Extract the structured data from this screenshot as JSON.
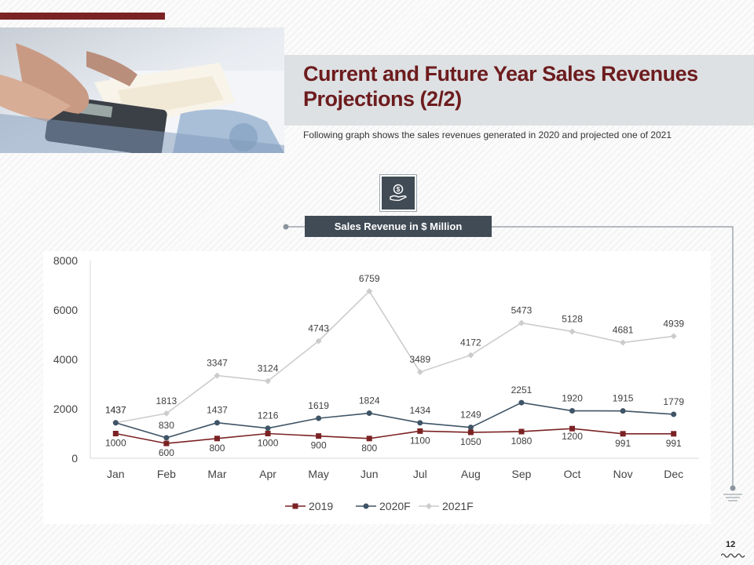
{
  "header": {
    "title": "Current and Future Year Sales Revenues Projections (2/2)",
    "subtitle": "Following graph shows the sales revenues  generated  in 2020 and projected one of 2021"
  },
  "label": {
    "text": "Sales Revenue in $ Million"
  },
  "icon": {
    "name": "money-hand-icon"
  },
  "footer": {
    "page_number": "12"
  },
  "colors": {
    "brand": "#7b2224",
    "title": "#6d1c1e",
    "banner": "#404b55",
    "series_2019": "#7b2224",
    "series_2020F": "#3f5466",
    "series_2021F": "#cccccc"
  },
  "chart_data": {
    "type": "line",
    "title": "Sales Revenue in $ Million",
    "categories": [
      "Jan",
      "Feb",
      "Mar",
      "Apr",
      "May",
      "Jun",
      "Jul",
      "Aug",
      "Sep",
      "Oct",
      "Nov",
      "Dec"
    ],
    "ylim": [
      0,
      8000
    ],
    "yticks": [
      "0",
      "2000",
      "4000",
      "6000",
      "8000"
    ],
    "legend": "bottom",
    "grid": false,
    "series": [
      {
        "name": "2019",
        "values": [
          1000,
          600,
          800,
          1000,
          900,
          800,
          1100,
          1050,
          1080,
          1200,
          991,
          991
        ]
      },
      {
        "name": "2020F",
        "values": [
          1437,
          830,
          1437,
          1216,
          1619,
          1824,
          1434,
          1249,
          2251,
          1920,
          1915,
          1779
        ]
      },
      {
        "name": "2021F",
        "values": [
          1437,
          1813,
          3347,
          3124,
          4743,
          6759,
          3489,
          4172,
          5473,
          5128,
          4681,
          4939
        ]
      }
    ]
  }
}
